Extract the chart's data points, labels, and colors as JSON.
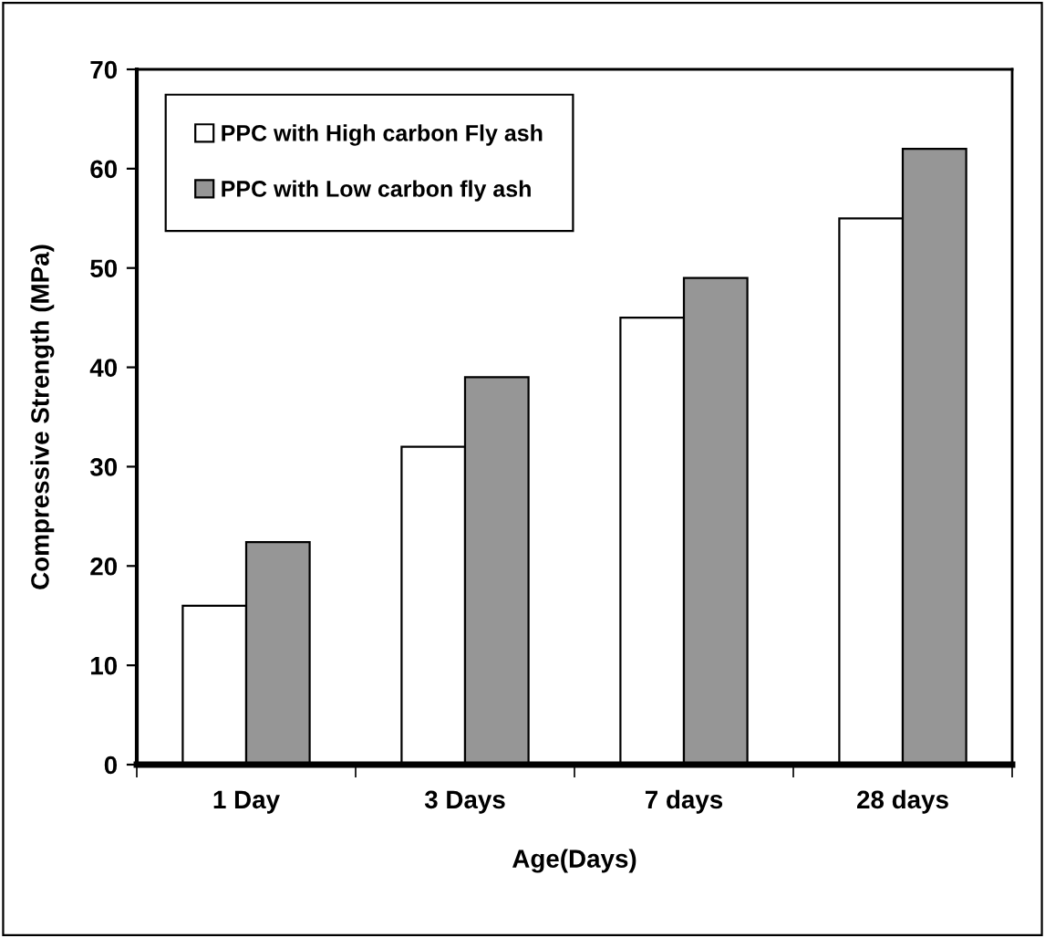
{
  "chart_data": {
    "type": "bar",
    "xlabel": "Age(Days)",
    "ylabel": "Compressive Strength (MPa)",
    "categories": [
      "1 Day",
      "3 Days",
      "7 days",
      "28 days"
    ],
    "series": [
      {
        "name": "PPC with High carbon Fly ash",
        "color": "#ffffff",
        "values": [
          16,
          32,
          45,
          55
        ]
      },
      {
        "name": "PPC with Low carbon fly ash",
        "color": "#969696",
        "values": [
          22.4,
          39,
          49,
          62
        ]
      }
    ],
    "ylim": [
      0,
      70
    ],
    "yticks": [
      0,
      10,
      20,
      30,
      40,
      50,
      60,
      70
    ],
    "grid": false,
    "legend": "top left"
  }
}
